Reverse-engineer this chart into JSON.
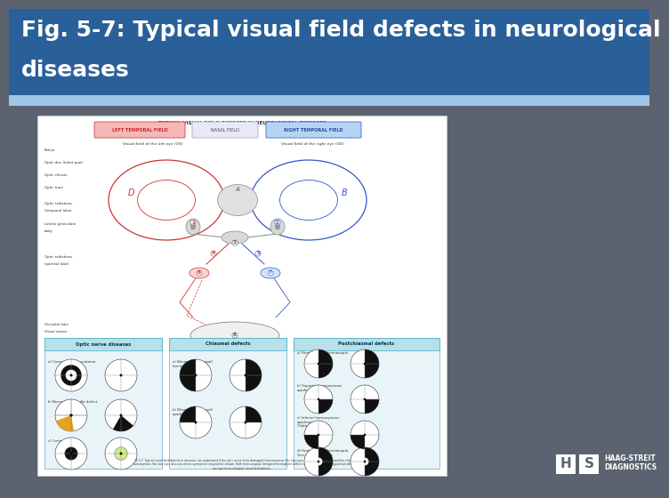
{
  "title_line1": "Fig. 5-7: Typical visual field defects in neurological",
  "title_line2": "diseases",
  "title_bg_color": "#2a6099",
  "title_text_color": "#FFFFFF",
  "title_fontsize": 18,
  "title_font_weight": "bold",
  "bg_color": "#5c6370",
  "light_bar_color": "#9fc5e8",
  "inner_bg_color": "#f0f0f0",
  "white_page_color": "#FFFFFF",
  "logo_text1": "HAAG-STREIT",
  "logo_text2": "DIAGNOSTICS",
  "red_header_color": "#f4b8b8",
  "red_header_edge": "#cc4444",
  "red_header_text": "#cc2222",
  "blue_header_color": "#b8d4f4",
  "blue_header_edge": "#4466cc",
  "blue_header_text": "#2244aa",
  "nasal_header_color": "#e8e8f8",
  "nasal_header_edge": "#aaaacc",
  "nasal_header_text": "#444466",
  "col_header_color": "#b8e0e8",
  "col_header_edge": "#44aacc",
  "col_header_text": "#003355",
  "dark_text": "#333333",
  "red_pathway": "#cc3333",
  "blue_pathway": "#3355cc",
  "gray_pathway": "#888888"
}
